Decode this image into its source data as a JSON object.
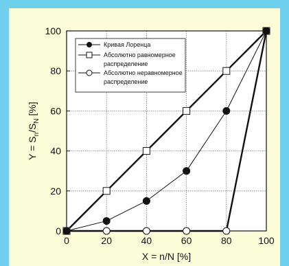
{
  "colors": {
    "frame": "#6fd0ee",
    "panel": "#fdfcd8",
    "plot_bg": "#ffffff",
    "ink": "#111111"
  },
  "chart_data": {
    "type": "line",
    "xlabel_parts": [
      "X = n/N [%]"
    ],
    "ylabel_parts": [
      "Y = S",
      "n",
      "/S",
      "N",
      " [%]"
    ],
    "xlim": [
      0,
      100
    ],
    "ylim": [
      0,
      100
    ],
    "xticks": [
      "0",
      "20",
      "40",
      "60",
      "80",
      "100"
    ],
    "yticks": [
      "0",
      "20",
      "40",
      "60",
      "80",
      "100"
    ],
    "grid": true,
    "legend_position": "top-left",
    "series": [
      {
        "name": "Кривая Лоренца",
        "marker": "filled-circle",
        "line": "thin",
        "x": [
          0,
          20,
          40,
          60,
          80,
          100
        ],
        "y": [
          0,
          5,
          15,
          30,
          60,
          100
        ]
      },
      {
        "name": "Абсолютно равномерное распределение",
        "name_lines": [
          "Абсолютно равномерное",
          "распределение"
        ],
        "marker": "open-square",
        "line": "thick",
        "x": [
          0,
          20,
          40,
          60,
          80,
          100
        ],
        "y": [
          0,
          20,
          40,
          60,
          80,
          100
        ]
      },
      {
        "name": "Абсолютно неравномерное распределение",
        "name_lines": [
          "Абсолютно неравномерное",
          "распределение"
        ],
        "marker": "open-circle",
        "line": "thick",
        "x": [
          0,
          20,
          40,
          60,
          80,
          100
        ],
        "y": [
          0,
          0,
          0,
          0,
          0,
          100
        ]
      }
    ]
  }
}
